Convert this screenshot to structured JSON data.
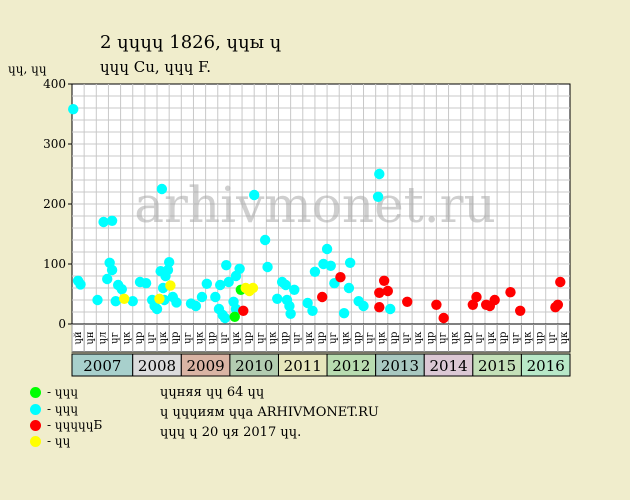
{
  "header": {
    "title": "2 ɥɥɥɥ 1826, ɥɥы ɥ",
    "subtitle": "ɥɥɥ Cu, ɥɥɥ F."
  },
  "chart_data": {
    "type": "scatter",
    "y_unit": "ɥɥ, ɥɥ",
    "ylim": [
      0,
      400
    ],
    "yticks": [
      0,
      100,
      200,
      300,
      400
    ],
    "grid": true,
    "watermark": "arhivmonet.ru",
    "months": [
      "ɥй",
      "ɥн",
      "ɥл",
      "ɥг",
      "ɥк",
      "ɥр",
      "ɥг",
      "ɥк",
      "ɥр",
      "ɥг",
      "ɥк",
      "ɥр",
      "ɥг",
      "ɥк",
      "ɥр",
      "ɥг",
      "ɥк",
      "ɥр",
      "ɥг",
      "ɥк",
      "ɥр",
      "ɥг",
      "ɥк",
      "ɥр",
      "ɥг",
      "ɥк",
      "ɥр",
      "ɥг",
      "ɥк",
      "ɥр",
      "ɥг",
      "ɥк",
      "ɥр",
      "ɥг",
      "ɥк",
      "ɥр",
      "ɥг",
      "ɥк",
      "ɥр",
      "ɥг",
      "ɥк"
    ],
    "years": [
      {
        "label": "2007",
        "start": 0,
        "span": 5,
        "color": "#a8d0cc"
      },
      {
        "label": "2008",
        "start": 5,
        "span": 4,
        "color": "#dcdcdc"
      },
      {
        "label": "2009",
        "start": 9,
        "span": 4,
        "color": "#dab4a4"
      },
      {
        "label": "2010",
        "start": 13,
        "span": 4,
        "color": "#b2ccb0"
      },
      {
        "label": "2011",
        "start": 17,
        "span": 4,
        "color": "#e6e6bc"
      },
      {
        "label": "2012",
        "start": 21,
        "span": 4,
        "color": "#b8dcb0"
      },
      {
        "label": "2013",
        "start": 25,
        "span": 4,
        "color": "#a8c8c0"
      },
      {
        "label": "2014",
        "start": 29,
        "span": 4,
        "color": "#dcc8d4"
      },
      {
        "label": "2015",
        "start": 33,
        "span": 4,
        "color": "#c4e0b8"
      },
      {
        "label": "2016",
        "start": 37,
        "span": 4,
        "color": "#b8e8c8"
      }
    ],
    "series": [
      {
        "key": "cyan",
        "color": "#00ffff",
        "points": [
          [
            0.1,
            358
          ],
          [
            0.5,
            72
          ],
          [
            0.7,
            66
          ],
          [
            2.1,
            40
          ],
          [
            2.6,
            170
          ],
          [
            2.9,
            75
          ],
          [
            3.1,
            102
          ],
          [
            3.3,
            90
          ],
          [
            3.3,
            172
          ],
          [
            3.6,
            38
          ],
          [
            3.8,
            65
          ],
          [
            4.1,
            58
          ],
          [
            5.0,
            38
          ],
          [
            5.6,
            70
          ],
          [
            6.1,
            68
          ],
          [
            6.6,
            40
          ],
          [
            6.8,
            30
          ],
          [
            7.0,
            25
          ],
          [
            7.3,
            88
          ],
          [
            7.4,
            225
          ],
          [
            7.5,
            60
          ],
          [
            7.6,
            40
          ],
          [
            7.7,
            80
          ],
          [
            7.9,
            90
          ],
          [
            8.0,
            103
          ],
          [
            8.3,
            45
          ],
          [
            8.6,
            36
          ],
          [
            9.8,
            34
          ],
          [
            10.2,
            30
          ],
          [
            10.7,
            45
          ],
          [
            11.1,
            67
          ],
          [
            11.8,
            45
          ],
          [
            12.1,
            25
          ],
          [
            12.2,
            65
          ],
          [
            12.4,
            15
          ],
          [
            12.6,
            10
          ],
          [
            12.7,
            98
          ],
          [
            12.9,
            70
          ],
          [
            13.3,
            37
          ],
          [
            13.5,
            25
          ],
          [
            13.5,
            80
          ],
          [
            13.8,
            92
          ],
          [
            15.0,
            215
          ],
          [
            15.9,
            140
          ],
          [
            16.1,
            95
          ],
          [
            16.9,
            42
          ],
          [
            17.3,
            70
          ],
          [
            17.6,
            65
          ],
          [
            17.7,
            40
          ],
          [
            17.9,
            30
          ],
          [
            18.0,
            17
          ],
          [
            18.3,
            57
          ],
          [
            19.4,
            35
          ],
          [
            19.8,
            22
          ],
          [
            20.0,
            87
          ],
          [
            20.7,
            100
          ],
          [
            21.0,
            125
          ],
          [
            21.3,
            97
          ],
          [
            21.6,
            68
          ],
          [
            22.4,
            18
          ],
          [
            22.8,
            60
          ],
          [
            22.9,
            102
          ],
          [
            23.6,
            38
          ],
          [
            24.0,
            30
          ],
          [
            25.2,
            212
          ],
          [
            25.3,
            250
          ],
          [
            26.2,
            25
          ]
        ]
      },
      {
        "key": "red",
        "color": "#ff0000",
        "points": [
          [
            14.1,
            22
          ],
          [
            20.6,
            45
          ],
          [
            22.1,
            78
          ],
          [
            25.3,
            28
          ],
          [
            25.3,
            52
          ],
          [
            25.7,
            72
          ],
          [
            26.0,
            55
          ],
          [
            27.6,
            37
          ],
          [
            30.0,
            32
          ],
          [
            30.6,
            10
          ],
          [
            33.0,
            32
          ],
          [
            33.3,
            45
          ],
          [
            34.1,
            32
          ],
          [
            34.4,
            30
          ],
          [
            34.8,
            40
          ],
          [
            36.1,
            53
          ],
          [
            36.9,
            22
          ],
          [
            39.8,
            28
          ],
          [
            40.0,
            32
          ],
          [
            40.2,
            70
          ]
        ]
      },
      {
        "key": "green",
        "color": "#00ff00",
        "points": [
          [
            13.4,
            12
          ],
          [
            13.9,
            57
          ]
        ]
      },
      {
        "key": "yellow",
        "color": "#ffff00",
        "points": [
          [
            4.3,
            42
          ],
          [
            7.2,
            42
          ],
          [
            8.1,
            64
          ],
          [
            14.3,
            60
          ],
          [
            14.6,
            55
          ],
          [
            14.9,
            60
          ]
        ]
      }
    ]
  },
  "legend": [
    {
      "color": "#00ff00",
      "label": "- ɥɥɥ"
    },
    {
      "color": "#00ffff",
      "label": "- ɥɥɥ"
    },
    {
      "color": "#ff0000",
      "label": "- ɥɥɥɥɥБ"
    },
    {
      "color": "#ffff00",
      "label": "- ɥɥ"
    }
  ],
  "notes": {
    "line1": "ɥɥняя ɥɥ 64 ɥɥ",
    "line2": "ɥ ɥɥɥиям ɥɥа ARHIVMONET.RU",
    "line3": "ɥɥɥ ɥ 20 ɥя 2017 ɥɥ."
  }
}
